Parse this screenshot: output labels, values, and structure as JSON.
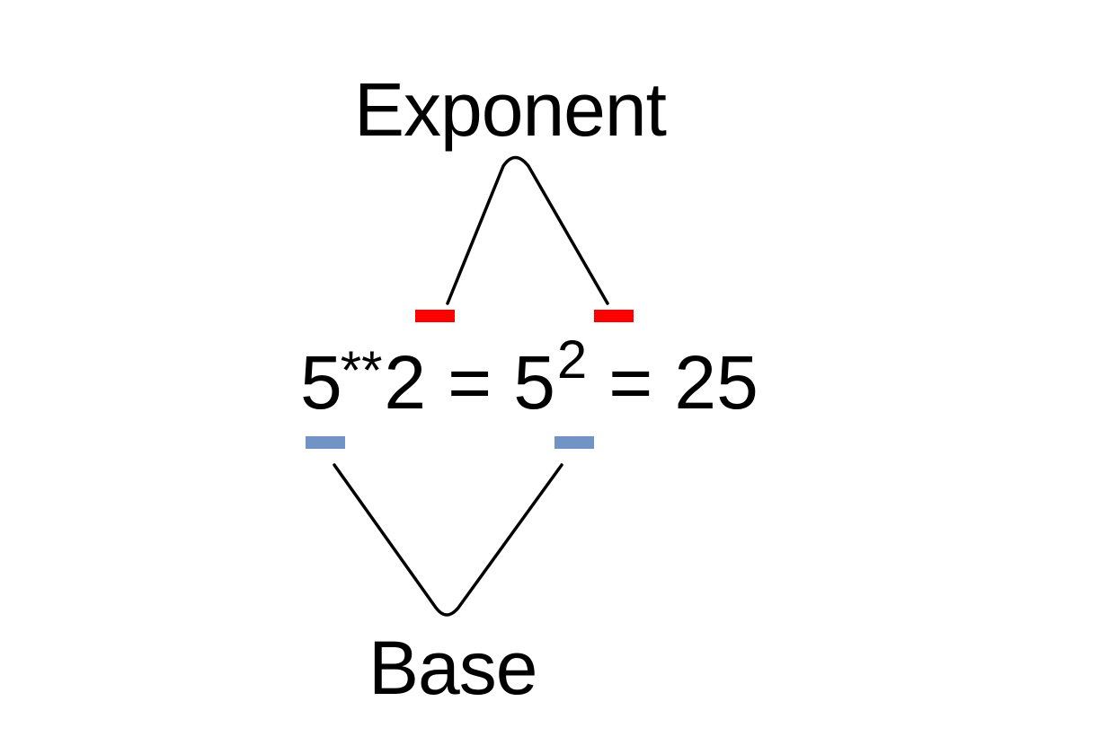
{
  "labels": {
    "exponent": "Exponent",
    "base": "Base"
  },
  "equation": {
    "base_literal": "5",
    "power_operator": "**",
    "exponent_literal": "2",
    "equals_1": "=",
    "base_math": "5",
    "exponent_math": "2",
    "equals_2": "=",
    "result": "25"
  },
  "colors": {
    "exponent_marker": "#ff0000",
    "base_marker": "#7193c6",
    "connector": "#000000",
    "background": "#ffffff"
  }
}
